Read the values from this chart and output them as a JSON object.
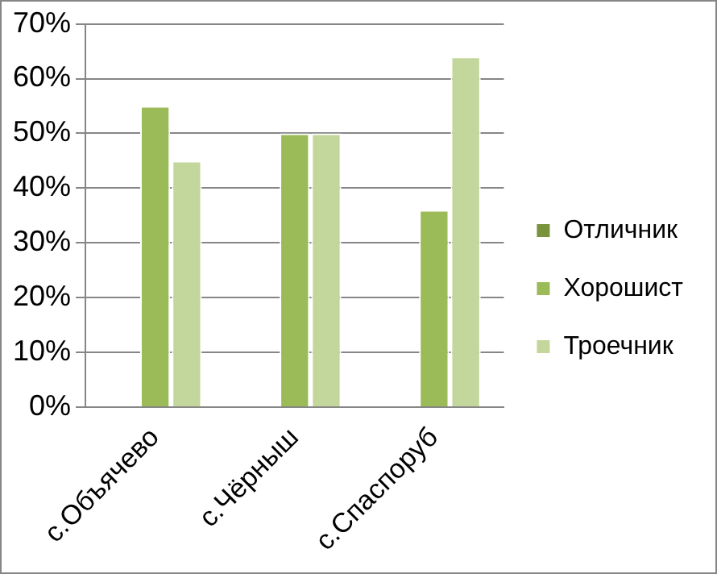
{
  "chart_data": {
    "type": "bar",
    "categories": [
      "с.Объячево",
      "с.Чёрныш",
      "с.Спаспоруб"
    ],
    "series": [
      {
        "name": "Отличник",
        "color": "#77933c",
        "values": [
          0,
          0,
          0
        ]
      },
      {
        "name": "Хорошист",
        "color": "#9bbb59",
        "values": [
          55,
          50,
          36
        ]
      },
      {
        "name": "Троечник",
        "color": "#c3d69b",
        "values": [
          45,
          50,
          64
        ]
      }
    ],
    "ylim": [
      0,
      70
    ],
    "yticks": [
      {
        "value": 0,
        "label": "0%"
      },
      {
        "value": 10,
        "label": "10%"
      },
      {
        "value": 20,
        "label": "20%"
      },
      {
        "value": 30,
        "label": "30%"
      },
      {
        "value": 40,
        "label": "40%"
      },
      {
        "value": 50,
        "label": "50%"
      },
      {
        "value": 60,
        "label": "60%"
      },
      {
        "value": 70,
        "label": "70%"
      }
    ],
    "grid": "y",
    "legend": "right"
  }
}
